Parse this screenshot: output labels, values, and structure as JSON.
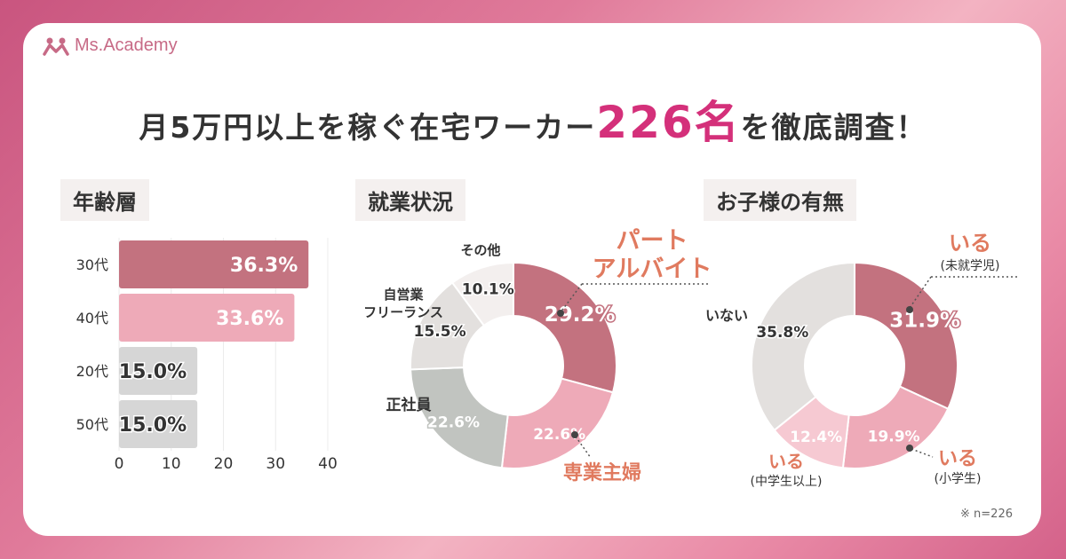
{
  "brand": {
    "name": "Ms.Academy"
  },
  "headline": {
    "pre": "月5万円以上を稼ぐ在宅ワーカー",
    "highlight": "226名",
    "post": "を徹底調査！"
  },
  "sections": {
    "age": "年齢層",
    "employment": "就業状況",
    "children": "お子様の有無"
  },
  "note": "※ n=226",
  "colors": {
    "accent": "#d4307a",
    "dark_pink": "#c3727f",
    "light_pink": "#eeaab8",
    "pale_pink": "#f6c9d2",
    "grey": "#d6d6d6",
    "light_grey": "#e3e0de",
    "grey_green": "#c1c4c0",
    "faint": "#f3efee",
    "label_orange": "#e07a5f"
  },
  "chart_data": [
    {
      "type": "bar",
      "orientation": "horizontal",
      "title": "年齢層",
      "categories": [
        "30代",
        "40代",
        "20代",
        "50代"
      ],
      "values": [
        36.3,
        33.6,
        15.0,
        15.0
      ],
      "value_labels": [
        "36.3%",
        "33.6%",
        "15.0%",
        "15.0%"
      ],
      "xlim": [
        0,
        40
      ],
      "xticks": [
        0,
        10,
        20,
        30,
        40
      ],
      "grid": true
    },
    {
      "type": "pie",
      "variant": "donut",
      "title": "就業状況",
      "slices": [
        {
          "label": "パート アルバイト",
          "value": 29.2,
          "value_label": "29.2%"
        },
        {
          "label": "専業主婦",
          "value": 22.6,
          "value_label": "22.6%"
        },
        {
          "label": "正社員",
          "value": 22.6,
          "value_label": "22.6%"
        },
        {
          "label": "自営業 フリーランス",
          "value": 15.5,
          "value_label": "15.5%"
        },
        {
          "label": "その他",
          "value": 10.1,
          "value_label": "10.1%"
        }
      ]
    },
    {
      "type": "pie",
      "variant": "donut",
      "title": "お子様の有無",
      "slices": [
        {
          "label": "いる",
          "sublabel": "(未就学児)",
          "value": 31.9,
          "value_label": "31.9%"
        },
        {
          "label": "いる",
          "sublabel": "(小学生)",
          "value": 19.9,
          "value_label": "19.9%"
        },
        {
          "label": "いる",
          "sublabel": "(中学生以上)",
          "value": 12.4,
          "value_label": "12.4%"
        },
        {
          "label": "いない",
          "value": 35.8,
          "value_label": "35.8%"
        }
      ]
    }
  ]
}
